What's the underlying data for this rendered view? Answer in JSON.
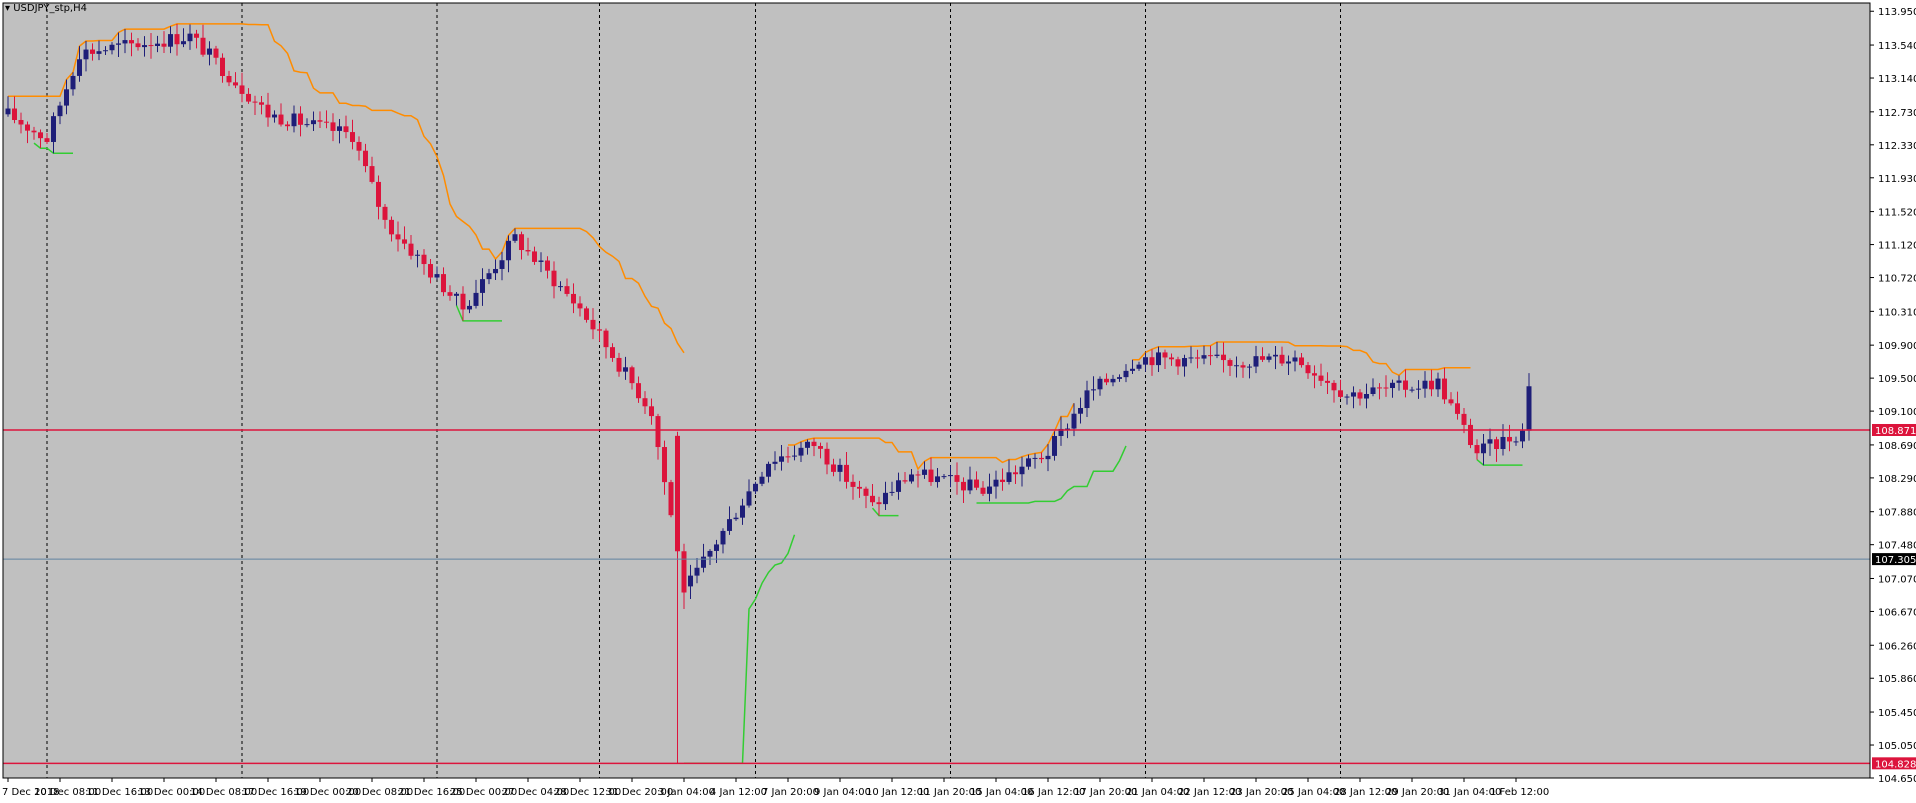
{
  "window": {
    "symbol_label": "USDJPY_stp,H4",
    "menu_icon": "triangle-down-icon"
  },
  "colors": {
    "background": "#c0c0c0",
    "bull": "#1e1e78",
    "bear": "#dc143c",
    "upper_channel": "#ff8c00",
    "lower_channel": "#32cd32",
    "hline": "#dc143c",
    "crosshair": "#5f82a0",
    "grid": "#000000"
  },
  "price_axis": {
    "min": 104.65,
    "max": 114.05,
    "ticks": [
      "113.950",
      "113.540",
      "113.140",
      "112.730",
      "112.330",
      "111.930",
      "111.520",
      "111.120",
      "110.720",
      "110.310",
      "109.900",
      "109.500",
      "109.100",
      "108.690",
      "108.290",
      "107.880",
      "107.480",
      "107.070",
      "106.670",
      "106.260",
      "105.860",
      "105.450",
      "105.050",
      "104.650"
    ]
  },
  "time_axis": {
    "labels": [
      "7 Dec 2018",
      "10 Dec 08:00",
      "11 Dec 16:00",
      "13 Dec 00:00",
      "14 Dec 08:00",
      "17 Dec 16:00",
      "19 Dec 00:00",
      "20 Dec 08:00",
      "21 Dec 16:00",
      "25 Dec 00:00",
      "27 Dec 04:00",
      "28 Dec 12:00",
      "31 Dec 20:00",
      "3 Jan 04:00",
      "4 Jan 12:00",
      "7 Jan 20:00",
      "9 Jan 04:00",
      "10 Jan 12:00",
      "11 Jan 20:00",
      "15 Jan 04:00",
      "16 Jan 12:00",
      "17 Jan 20:00",
      "21 Jan 04:00",
      "22 Jan 12:00",
      "23 Jan 20:00",
      "25 Jan 04:00",
      "28 Jan 12:00",
      "29 Jan 20:00",
      "31 Jan 04:00",
      "1 Feb 12:00"
    ],
    "label_bar_index": [
      0,
      8,
      16,
      24,
      32,
      40,
      48,
      56,
      64,
      72,
      80,
      88,
      96,
      104,
      112,
      120,
      128,
      136,
      144,
      152,
      160,
      168,
      176,
      184,
      192,
      200,
      208,
      216,
      224,
      232
    ],
    "period_separator_bar_index": [
      6,
      36,
      66,
      91,
      115,
      145,
      175,
      205
    ]
  },
  "horizontal_lines": [
    {
      "price": 108.871,
      "label": "108.871",
      "style": "solid",
      "color": "#dc143c"
    },
    {
      "price": 104.828,
      "label": "104.828",
      "style": "solid",
      "color": "#dc143c"
    }
  ],
  "crosshair": {
    "price": 107.305,
    "label": "107.305"
  },
  "chart_data": {
    "type": "candlestick",
    "symbol": "USDJPY_stp",
    "timeframe": "H4",
    "date_range": [
      "7 Dec 2018",
      "1 Feb 12:00"
    ],
    "key_points": [
      {
        "bar": 0,
        "close": 112.7
      },
      {
        "bar": 6,
        "close": 112.4
      },
      {
        "bar": 11,
        "close": 113.45
      },
      {
        "bar": 28,
        "close": 113.65
      },
      {
        "bar": 40,
        "close": 112.7
      },
      {
        "bar": 53,
        "close": 112.45
      },
      {
        "bar": 58,
        "close": 111.4
      },
      {
        "bar": 70,
        "close": 110.35
      },
      {
        "bar": 78,
        "close": 111.2
      },
      {
        "bar": 88,
        "close": 110.35
      },
      {
        "bar": 99,
        "close": 109.1
      },
      {
        "bar": 103,
        "close": 107.4
      },
      {
        "bar": 104,
        "close": 106.9
      },
      {
        "bar": 117,
        "close": 108.5
      },
      {
        "bar": 124,
        "close": 108.7
      },
      {
        "bar": 133,
        "close": 107.95
      },
      {
        "bar": 139,
        "close": 108.35
      },
      {
        "bar": 150,
        "close": 108.15
      },
      {
        "bar": 160,
        "close": 108.6
      },
      {
        "bar": 166,
        "close": 109.3
      },
      {
        "bar": 174,
        "close": 109.75
      },
      {
        "bar": 188,
        "close": 109.7
      },
      {
        "bar": 198,
        "close": 109.75
      },
      {
        "bar": 206,
        "close": 109.3
      },
      {
        "bar": 220,
        "close": 109.45
      },
      {
        "bar": 226,
        "close": 108.6
      },
      {
        "bar": 233,
        "close": 108.85
      },
      {
        "bar": 234,
        "close": 109.45
      }
    ],
    "spike_low": {
      "bar": 103,
      "price": 104.828
    }
  }
}
